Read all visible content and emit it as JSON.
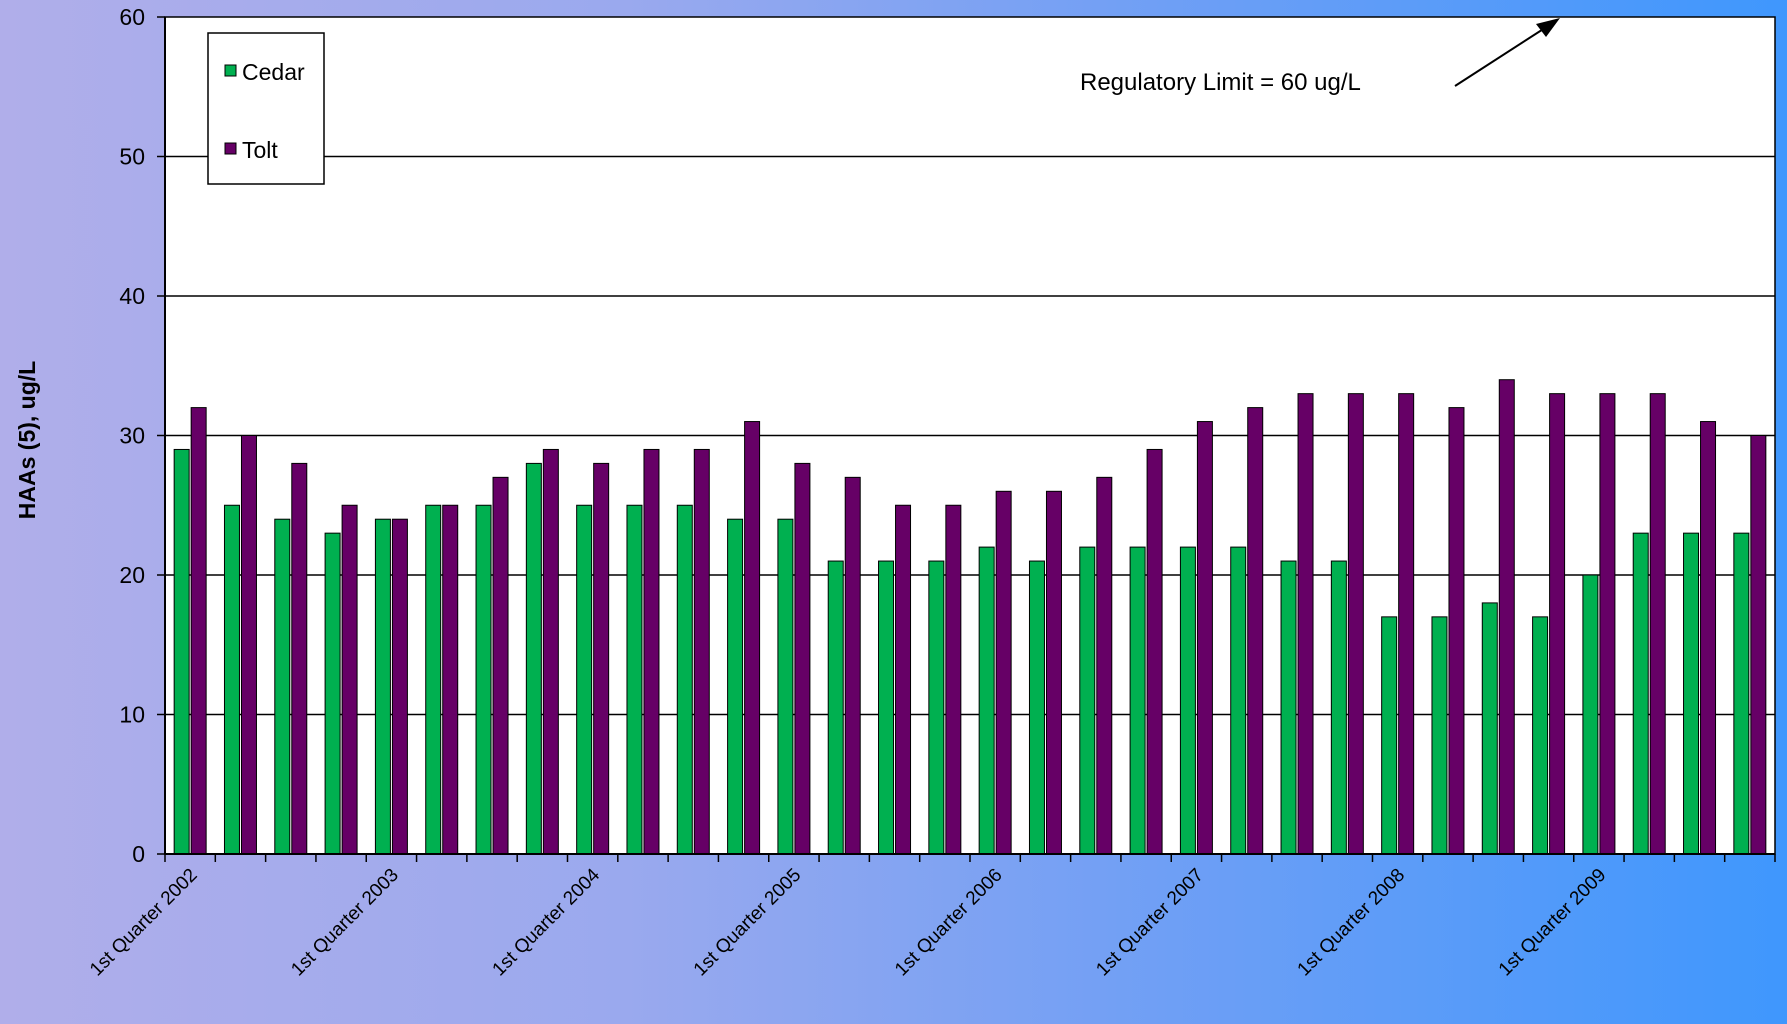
{
  "chart_data": {
    "type": "bar",
    "ylabel": "HAAs (5), ug/L",
    "xlabel": "",
    "ylim": [
      0,
      60
    ],
    "yticks": [
      0,
      10,
      20,
      30,
      40,
      50,
      60
    ],
    "grid": true,
    "legend_position": "top-left",
    "category_labels": [
      "1st Quarter 2002",
      "1st Quarter  2003",
      "1st Quarter  2004",
      "1st Quarter 2005",
      "1st Quarter 2006",
      "1st Quarter 2007",
      "1st Quarter 2008",
      "1st Quarter 2009"
    ],
    "categories_count": 32,
    "series": [
      {
        "name": "Cedar",
        "color": "#00b050",
        "values": [
          29,
          25,
          24,
          23,
          24,
          25,
          25,
          28,
          25,
          25,
          25,
          24,
          24,
          21,
          21,
          21,
          22,
          21,
          22,
          22,
          22,
          22,
          21,
          21,
          17,
          17,
          18,
          17,
          20,
          23,
          23,
          23
        ]
      },
      {
        "name": "Tolt",
        "color": "#660066",
        "values": [
          32,
          30,
          28,
          25,
          24,
          25,
          27,
          29,
          28,
          29,
          29,
          31,
          28,
          27,
          25,
          25,
          26,
          26,
          27,
          29,
          31,
          32,
          33,
          33,
          33,
          32,
          34,
          33,
          33,
          33,
          31,
          30
        ]
      }
    ],
    "annotation": "Regulatory Limit = 60 ug/L"
  }
}
